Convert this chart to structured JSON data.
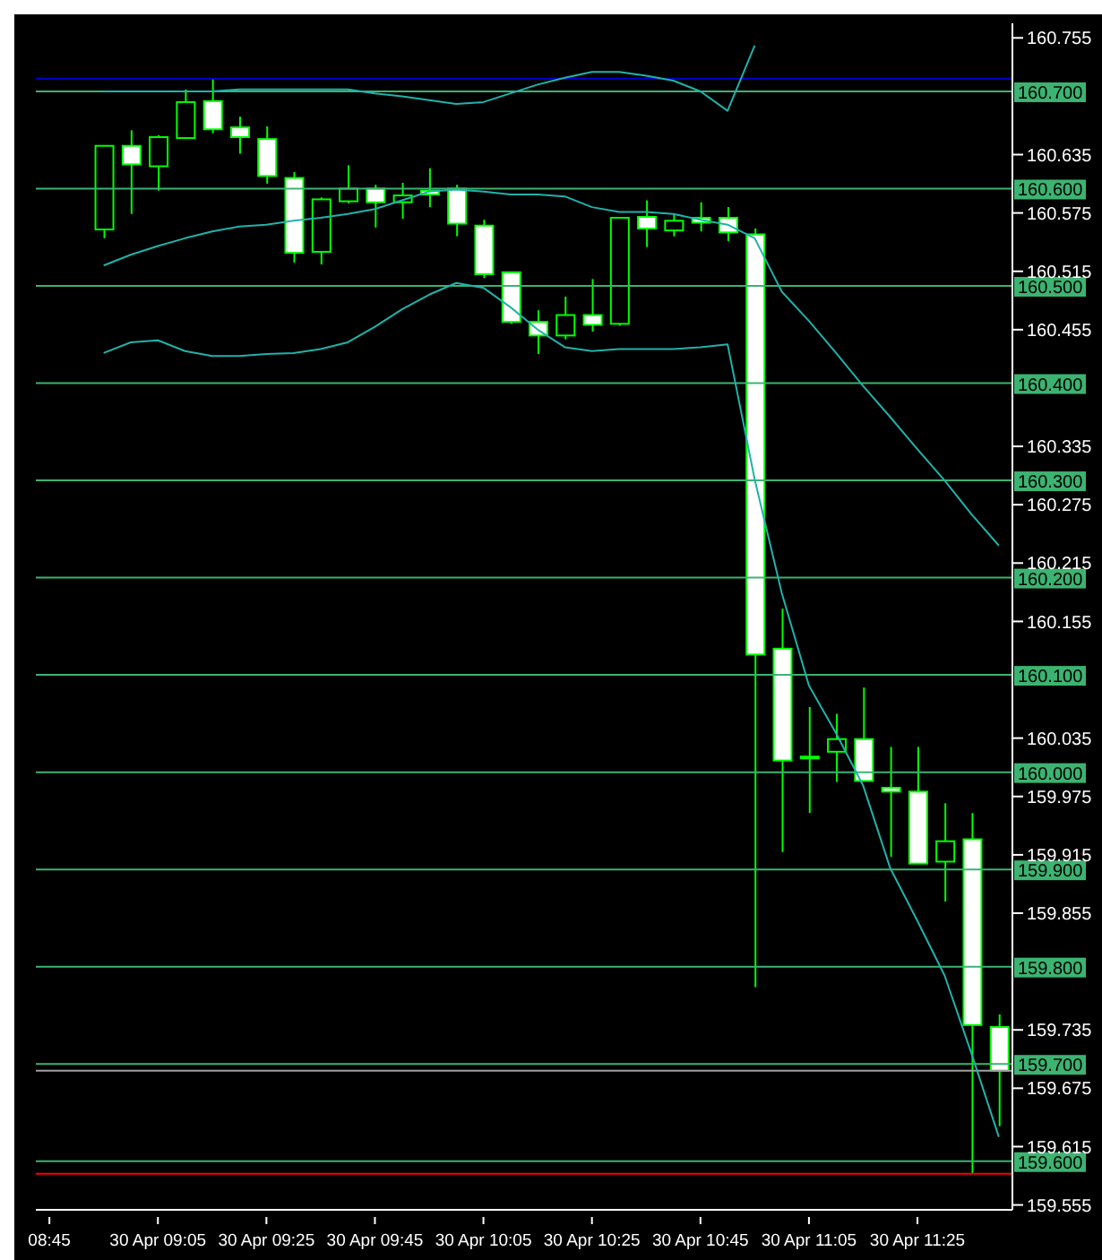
{
  "chart_data": {
    "type": "candlestick",
    "categories": [
      "08:45",
      null,
      null,
      null,
      "30 Apr 09:05",
      null,
      null,
      null,
      "30 Apr 09:25",
      null,
      null,
      null,
      "30 Apr 09:45",
      null,
      null,
      null,
      "30 Apr 10:05",
      null,
      null,
      null,
      "30 Apr 10:25",
      null,
      null,
      null,
      "30 Apr 10:45",
      null,
      null,
      null,
      "30 Apr 11:05",
      null,
      null,
      null,
      "30 Apr 11:25",
      null,
      null,
      null
    ],
    "ohlc": [
      null,
      null,
      [
        160.558,
        160.644,
        160.549,
        160.644
      ],
      [
        160.644,
        160.66,
        160.574,
        160.625
      ],
      [
        160.623,
        160.655,
        160.598,
        160.653
      ],
      [
        160.652,
        160.702,
        160.652,
        160.689
      ],
      [
        160.69,
        160.713,
        160.657,
        160.661
      ],
      [
        160.663,
        160.674,
        160.636,
        160.653
      ],
      [
        160.651,
        160.664,
        160.605,
        160.613
      ],
      [
        160.611,
        160.617,
        160.524,
        160.534
      ],
      [
        160.535,
        160.591,
        160.522,
        160.589
      ],
      [
        160.587,
        160.624,
        160.585,
        160.6
      ],
      [
        160.6,
        160.604,
        160.56,
        160.586
      ],
      [
        160.586,
        160.606,
        160.569,
        160.593
      ],
      [
        160.598,
        160.621,
        160.581,
        160.594
      ],
      [
        160.6,
        160.604,
        160.551,
        160.564
      ],
      [
        160.562,
        160.568,
        160.508,
        160.512
      ],
      [
        160.514,
        160.514,
        160.461,
        160.463
      ],
      [
        160.463,
        160.475,
        160.43,
        160.449
      ],
      [
        160.449,
        160.489,
        160.445,
        160.47
      ],
      [
        160.47,
        160.507,
        160.453,
        160.46
      ],
      [
        160.461,
        160.57,
        160.459,
        160.57
      ],
      [
        160.571,
        160.588,
        160.54,
        160.559
      ],
      [
        160.557,
        160.573,
        160.551,
        160.567
      ],
      [
        160.57,
        160.586,
        160.556,
        160.565
      ],
      [
        160.57,
        160.581,
        160.546,
        160.555
      ],
      [
        160.553,
        160.559,
        159.779,
        160.121
      ],
      [
        160.127,
        160.168,
        159.918,
        160.012
      ],
      [
        160.016,
        160.067,
        159.958,
        160.015
      ],
      [
        160.021,
        160.06,
        159.99,
        160.034
      ],
      [
        160.034,
        160.087,
        159.991,
        159.991
      ],
      [
        159.984,
        160.026,
        159.913,
        159.98
      ],
      [
        159.98,
        160.026,
        159.906,
        159.906
      ],
      [
        159.908,
        159.968,
        159.867,
        159.929
      ],
      [
        159.931,
        159.958,
        159.587,
        159.74
      ],
      [
        159.738,
        159.751,
        159.636,
        159.693
      ]
    ],
    "color": "#00ff00",
    "series": [
      {
        "type": "line",
        "color": "#20b2aa",
        "values": [
          null,
          null,
          160.7,
          160.7,
          160.7,
          160.7,
          160.7,
          160.702,
          160.702,
          160.702,
          160.702,
          160.702,
          160.698,
          160.695,
          160.691,
          160.687,
          160.689,
          160.698,
          160.707,
          160.714,
          160.72,
          160.72,
          160.716,
          160.711,
          160.7,
          160.68,
          160.747,
          null,
          null,
          null,
          null,
          null,
          null,
          null,
          null,
          null
        ]
      },
      {
        "type": "line",
        "color": "#20b2aa",
        "values": [
          null,
          null,
          160.521,
          160.532,
          160.541,
          160.549,
          160.556,
          160.561,
          160.563,
          160.567,
          160.57,
          160.574,
          160.579,
          160.588,
          160.597,
          160.599,
          160.597,
          160.594,
          160.594,
          160.592,
          160.581,
          160.576,
          160.576,
          160.574,
          160.568,
          160.563,
          160.549,
          160.494,
          160.464,
          160.431,
          160.397,
          160.365,
          160.332,
          160.3,
          160.265,
          160.233
        ]
      },
      {
        "type": "line",
        "color": "#20b2aa",
        "values": [
          null,
          null,
          160.431,
          160.442,
          160.444,
          160.433,
          160.428,
          160.428,
          160.43,
          160.431,
          160.435,
          160.442,
          160.458,
          160.476,
          160.491,
          160.503,
          160.498,
          160.478,
          160.455,
          160.437,
          160.433,
          160.435,
          160.435,
          160.435,
          160.437,
          160.44,
          160.301,
          160.184,
          160.089,
          160.04,
          159.986,
          159.901,
          159.847,
          159.791,
          159.71,
          159.625
        ]
      }
    ],
    "ylim": [
      159.55,
      160.77
    ],
    "yticks": [
      160.755,
      160.635,
      160.575,
      160.515,
      160.455,
      160.335,
      160.275,
      160.215,
      160.155,
      160.035,
      159.975,
      159.915,
      159.855,
      159.735,
      159.675,
      159.615,
      159.555
    ],
    "ref_lines": [
      {
        "axis": "y",
        "value": 160.7,
        "label": "160.700",
        "color": "#3cb371"
      },
      {
        "axis": "y",
        "value": 160.6,
        "label": "160.600",
        "color": "#3cb371"
      },
      {
        "axis": "y",
        "value": 160.5,
        "label": "160.500",
        "color": "#3cb371"
      },
      {
        "axis": "y",
        "value": 160.4,
        "label": "160.400",
        "color": "#3cb371"
      },
      {
        "axis": "y",
        "value": 160.3,
        "label": "160.300",
        "color": "#3cb371"
      },
      {
        "axis": "y",
        "value": 160.2,
        "label": "160.200",
        "color": "#3cb371"
      },
      {
        "axis": "y",
        "value": 160.1,
        "label": "160.100",
        "color": "#3cb371"
      },
      {
        "axis": "y",
        "value": 160.0,
        "label": "160.000",
        "color": "#3cb371"
      },
      {
        "axis": "y",
        "value": 159.9,
        "label": "159.900",
        "color": "#3cb371"
      },
      {
        "axis": "y",
        "value": 159.8,
        "label": "159.800",
        "color": "#3cb371"
      },
      {
        "axis": "y",
        "value": 159.7,
        "label": "159.700",
        "color": "#3cb371"
      },
      {
        "axis": "y",
        "value": 159.6,
        "label": "159.600",
        "color": "#3cb371"
      },
      {
        "axis": "y",
        "value": 160.713,
        "color": "#0000cd"
      },
      {
        "axis": "y",
        "value": 159.693,
        "color": "#a0a0a0"
      },
      {
        "axis": "y",
        "value": 159.587,
        "color": "#ff0000"
      }
    ]
  }
}
